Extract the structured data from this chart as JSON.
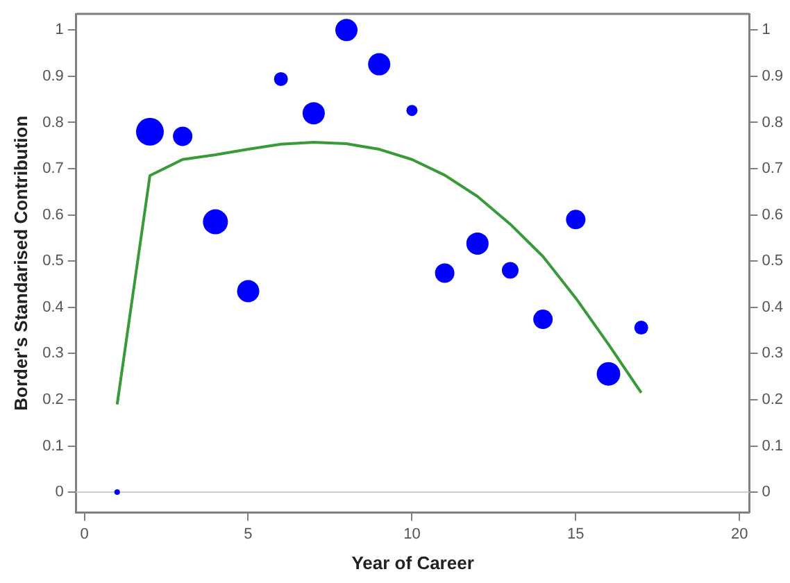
{
  "chart_data": {
    "type": "bubble",
    "xlabel": "Year of Career",
    "ylabel": "Border's Standarised Contribution",
    "xlim": [
      -0.25,
      20.3
    ],
    "xticks": [
      0,
      5,
      10,
      15,
      20
    ],
    "ylim": [
      -0.044,
      1.035
    ],
    "yticks": [
      0,
      0.1,
      0.2,
      0.3,
      0.4,
      0.5,
      0.6,
      0.7,
      0.8,
      0.9,
      1
    ],
    "y2lim": [
      -0.044,
      1.035
    ],
    "y2ticks": [
      0,
      0.1,
      0.2,
      0.3,
      0.4,
      0.5,
      0.6,
      0.7,
      0.8,
      0.9,
      1
    ],
    "x": [
      1,
      2,
      3,
      4,
      5,
      6,
      7,
      8,
      9,
      10,
      11,
      12,
      13,
      14,
      15,
      16,
      17
    ],
    "series": [
      {
        "color": "#0000ff",
        "values": [
          0,
          0.78,
          0.77,
          0.585,
          0.435,
          0.894,
          0.82,
          1.0,
          0.926,
          0.826,
          0.474,
          0.538,
          0.48,
          0.374,
          0.59,
          0.256,
          0.356
        ],
        "sizes": [
          0.04,
          1,
          0.49,
          0.81,
          0.64,
          0.25,
          0.64,
          0.64,
          0.64,
          0.16,
          0.49,
          0.64,
          0.36,
          0.49,
          0.49,
          0.72,
          0.25
        ]
      },
      {
        "type": "line",
        "color": "#3a9a3a",
        "values": [
          0.19,
          0.685,
          0.72,
          0.73,
          0.742,
          0.753,
          0.757,
          0.754,
          0.742,
          0.72,
          0.686,
          0.64,
          0.58,
          0.51,
          0.42,
          0.32,
          0.215
        ]
      }
    ],
    "ref_lines": [
      {
        "axis": "y",
        "value": 0,
        "color": "#cccccc"
      }
    ],
    "grid": false,
    "legend": false
  }
}
